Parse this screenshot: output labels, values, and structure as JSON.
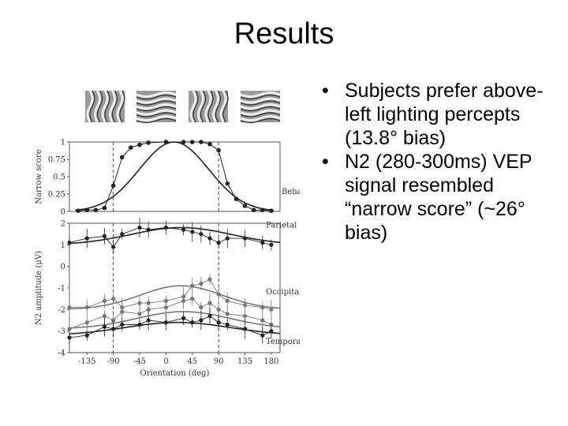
{
  "slide": {
    "title": "Results",
    "bullets": [
      "Subjects prefer above-left lighting percepts (13.8° bias)",
      "N2 (280-300ms) VEP signal resembled “narrow score” (~26° bias)"
    ]
  },
  "colors": {
    "dark": "#222222",
    "grey": "#777777",
    "frame": "#555555",
    "patch_bg": "#9a9a9a"
  },
  "chart_data": [
    {
      "type": "line",
      "panel": "Behavioural",
      "ylabel": "Narrow score",
      "ylim": [
        0,
        1
      ],
      "yticks": [
        "0",
        "0.25",
        "0.5",
        "0.75",
        "1"
      ],
      "x": [
        -150,
        -135,
        -120,
        -105,
        -90,
        -75,
        -60,
        -45,
        -30,
        0,
        30,
        45,
        60,
        75,
        90,
        105,
        120,
        135,
        150,
        165,
        180
      ],
      "series": [
        {
          "values": [
            0.01,
            0.02,
            0.02,
            0.05,
            0.37,
            0.78,
            0.92,
            0.96,
            0.99,
            1.0,
            1.0,
            1.0,
            1.0,
            0.97,
            0.88,
            0.4,
            0.18,
            0.08,
            0.02,
            0.02,
            0.01
          ]
        }
      ],
      "fit": {
        "center": 13.8,
        "width": 75,
        "peak": 1.0,
        "baseline": 0
      },
      "dashed_x": [
        -90,
        90
      ],
      "label": "Behavioural"
    },
    {
      "type": "line",
      "ylabel": "N2 amplitude (μV)",
      "ylim": [
        -4,
        2
      ],
      "yticks": [
        "2",
        "1",
        "0",
        "-1",
        "-2",
        "-3",
        "-4"
      ],
      "xlabel": "Orientation (deg)",
      "xticks": [
        "-135",
        "-90",
        "-45",
        "0",
        "45",
        "90",
        "135",
        "180"
      ],
      "xlim": [
        -165,
        195
      ],
      "dashed_x": [
        -90,
        90
      ],
      "panels": [
        {
          "label": "Parietal",
          "x": [
            -165,
            -135,
            -105,
            -90,
            -75,
            -45,
            -30,
            0,
            30,
            45,
            60,
            75,
            90,
            105,
            135,
            165,
            180
          ],
          "values": [
            1.1,
            1.3,
            1.4,
            0.9,
            1.5,
            1.8,
            1.7,
            1.8,
            1.7,
            1.6,
            1.5,
            1.3,
            1.1,
            1.3,
            1.3,
            1.1,
            1.0
          ],
          "fit": {
            "center": 26,
            "amp": 0.8,
            "width": 85,
            "base": 1.0
          }
        },
        {
          "label": "Occipital",
          "x": [
            -165,
            -135,
            -105,
            -90,
            -75,
            -45,
            -30,
            0,
            30,
            45,
            60,
            75,
            90,
            105,
            135,
            165,
            180
          ],
          "values": [
            -1.9,
            -1.9,
            -1.6,
            -1.5,
            -1.9,
            -1.7,
            -1.7,
            -1.6,
            -1.4,
            -0.9,
            -0.8,
            -0.6,
            -1.3,
            -1.6,
            -1.8,
            -1.9,
            -2.0
          ],
          "fit": {
            "center": 26,
            "amp": 1.1,
            "width": 70,
            "base": -2.0
          }
        },
        {
          "label": "",
          "x": [
            -165,
            -135,
            -105,
            -90,
            -75,
            -45,
            -30,
            0,
            30,
            45,
            60,
            75,
            90,
            105,
            135,
            165,
            180
          ],
          "values": [
            -2.9,
            -2.6,
            -2.3,
            -2.5,
            -2.1,
            -2.2,
            -2.0,
            -1.9,
            -1.6,
            -1.5,
            -1.9,
            -1.7,
            -2.0,
            -2.2,
            -2.3,
            -2.5,
            -2.7
          ],
          "fit": {
            "center": 30,
            "amp": 0.8,
            "width": 80,
            "base": -2.9
          }
        },
        {
          "label": "Temporal",
          "x": [
            -165,
            -135,
            -105,
            -90,
            -75,
            -45,
            -30,
            0,
            30,
            45,
            60,
            75,
            90,
            105,
            135,
            165,
            180
          ],
          "values": [
            -3.3,
            -3.2,
            -2.8,
            -2.9,
            -2.7,
            -2.7,
            -2.5,
            -2.6,
            -2.4,
            -2.6,
            -2.5,
            -2.3,
            -2.6,
            -2.7,
            -2.9,
            -3.2,
            -3.0
          ],
          "fit": {
            "center": 20,
            "amp": 0.6,
            "width": 90,
            "base": -3.2
          }
        }
      ]
    }
  ]
}
